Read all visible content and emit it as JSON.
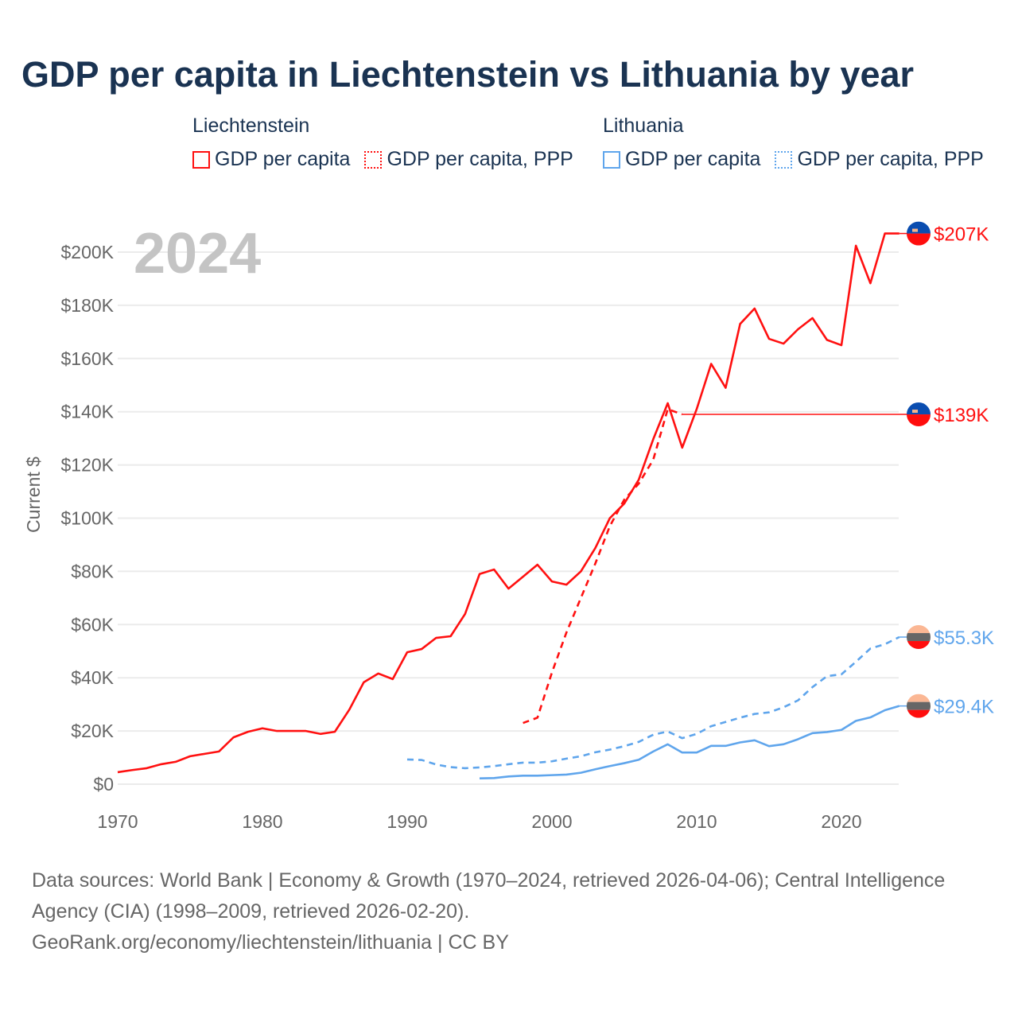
{
  "title": "GDP per capita in Liechtenstein vs Lithuania by year",
  "legend": [
    {
      "country": "Liechtenstein",
      "color": "#ff1010",
      "items": [
        "GDP per capita",
        "GDP per capita, PPP"
      ]
    },
    {
      "country": "Lithuania",
      "color": "#5fa5ec",
      "items": [
        "GDP per capita",
        "GDP per capita, PPP"
      ]
    }
  ],
  "year_watermark": "2024",
  "footer": {
    "sources": "Data sources: World Bank | Economy & Growth (1970–2024, retrieved 2026-04-06); Central Intelligence Agency (CIA) (1998–2009, retrieved 2026-02-20).",
    "credit": "GeoRank.org/economy/liechtenstein/lithuania | CC BY"
  },
  "chart_data": {
    "type": "line",
    "title": "GDP per capita in Liechtenstein vs Lithuania by year",
    "xlabel": "",
    "ylabel": "Current $",
    "xlim": [
      1970,
      2024
    ],
    "ylim": [
      0,
      210000
    ],
    "xticks": [
      1970,
      1980,
      1990,
      2000,
      2010,
      2020
    ],
    "yticks": [
      0,
      20000,
      40000,
      60000,
      80000,
      100000,
      120000,
      140000,
      160000,
      180000,
      200000
    ],
    "ytick_labels": [
      "$0",
      "$20K",
      "$40K",
      "$60K",
      "$80K",
      "$100K",
      "$120K",
      "$140K",
      "$160K",
      "$180K",
      "$200K"
    ],
    "grid": true,
    "legend_position": "top",
    "series": [
      {
        "name": "Liechtenstein GDP per capita",
        "country": "Liechtenstein",
        "color": "#ff1010",
        "dash": false,
        "start": 1970,
        "end_label": "$207K",
        "values": [
          4500,
          5300,
          6000,
          7500,
          8400,
          10500,
          11400,
          12300,
          17600,
          19700,
          21000,
          20000,
          20000,
          20000,
          18900,
          19700,
          28000,
          38300,
          41600,
          39500,
          49600,
          50800,
          55000,
          55600,
          64000,
          79000,
          80700,
          73500,
          78000,
          82500,
          76200,
          75000,
          80000,
          88800,
          100000,
          105500,
          114500,
          129700,
          143200,
          126500,
          141000,
          158000,
          149000,
          173000,
          178800,
          167400,
          165600,
          171000,
          175200,
          167000,
          165000,
          202400,
          188300,
          207000,
          207000
        ]
      },
      {
        "name": "Liechtenstein GDP per capita, PPP",
        "country": "Liechtenstein",
        "color": "#ff1010",
        "dash": true,
        "start": 1998,
        "end_label": "$139K",
        "extend_to": 2024,
        "values": [
          23000,
          25000,
          42000,
          57000,
          70000,
          83000,
          97000,
          107000,
          113000,
          122000,
          141000,
          139000
        ]
      },
      {
        "name": "Lithuania GDP per capita, PPP",
        "country": "Lithuania",
        "color": "#5fa5ec",
        "dash": true,
        "start": 1990,
        "end_label": "$55.3K",
        "values": [
          9300,
          9100,
          7400,
          6400,
          6000,
          6300,
          6800,
          7500,
          8100,
          8100,
          8600,
          9600,
          10500,
          12000,
          13000,
          14300,
          15900,
          18600,
          19800,
          17300,
          18900,
          21800,
          23400,
          25000,
          26400,
          27000,
          28900,
          31500,
          36500,
          40600,
          41300,
          46000,
          51000,
          52600,
          55300
        ]
      },
      {
        "name": "Lithuania GDP per capita",
        "country": "Lithuania",
        "color": "#5fa5ec",
        "dash": false,
        "start": 1995,
        "end_label": "$29.4K",
        "values": [
          2200,
          2300,
          2900,
          3200,
          3200,
          3400,
          3600,
          4300,
          5600,
          6800,
          7900,
          9200,
          12300,
          15000,
          11900,
          11900,
          14400,
          14400,
          15700,
          16500,
          14300,
          15000,
          16900,
          19200,
          19600,
          20400,
          23800,
          25100,
          27800,
          29400
        ]
      }
    ]
  }
}
